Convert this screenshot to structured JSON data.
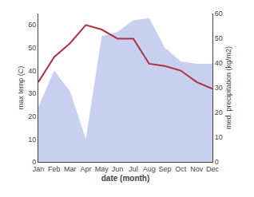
{
  "chart_data": {
    "type": "line",
    "xlabel": "date (month)",
    "ylabel": "max temp (C)",
    "y2label": "med. precipitation (kg/m2)",
    "categories": [
      "Jan",
      "Feb",
      "Mar",
      "Apr",
      "May",
      "Jun",
      "Jul",
      "Aug",
      "Sep",
      "Oct",
      "Nov",
      "Dec"
    ],
    "series": [
      {
        "type": "area",
        "color": "#c8d0f0",
        "values": [
          24,
          40,
          31,
          10,
          55,
          57,
          62,
          63,
          50,
          44,
          43,
          43
        ]
      },
      {
        "type": "line",
        "color": "#b03040",
        "values": [
          35,
          46,
          52,
          60,
          58,
          54,
          54,
          43,
          42,
          40,
          35,
          32
        ]
      }
    ],
    "ylim": [
      0,
      65
    ],
    "yticks": [
      0,
      10,
      20,
      30,
      40,
      50,
      60
    ],
    "y2lim": [
      0,
      60
    ],
    "y2ticks": [
      0,
      10,
      20,
      30,
      40,
      50,
      60
    ],
    "grid": false
  }
}
